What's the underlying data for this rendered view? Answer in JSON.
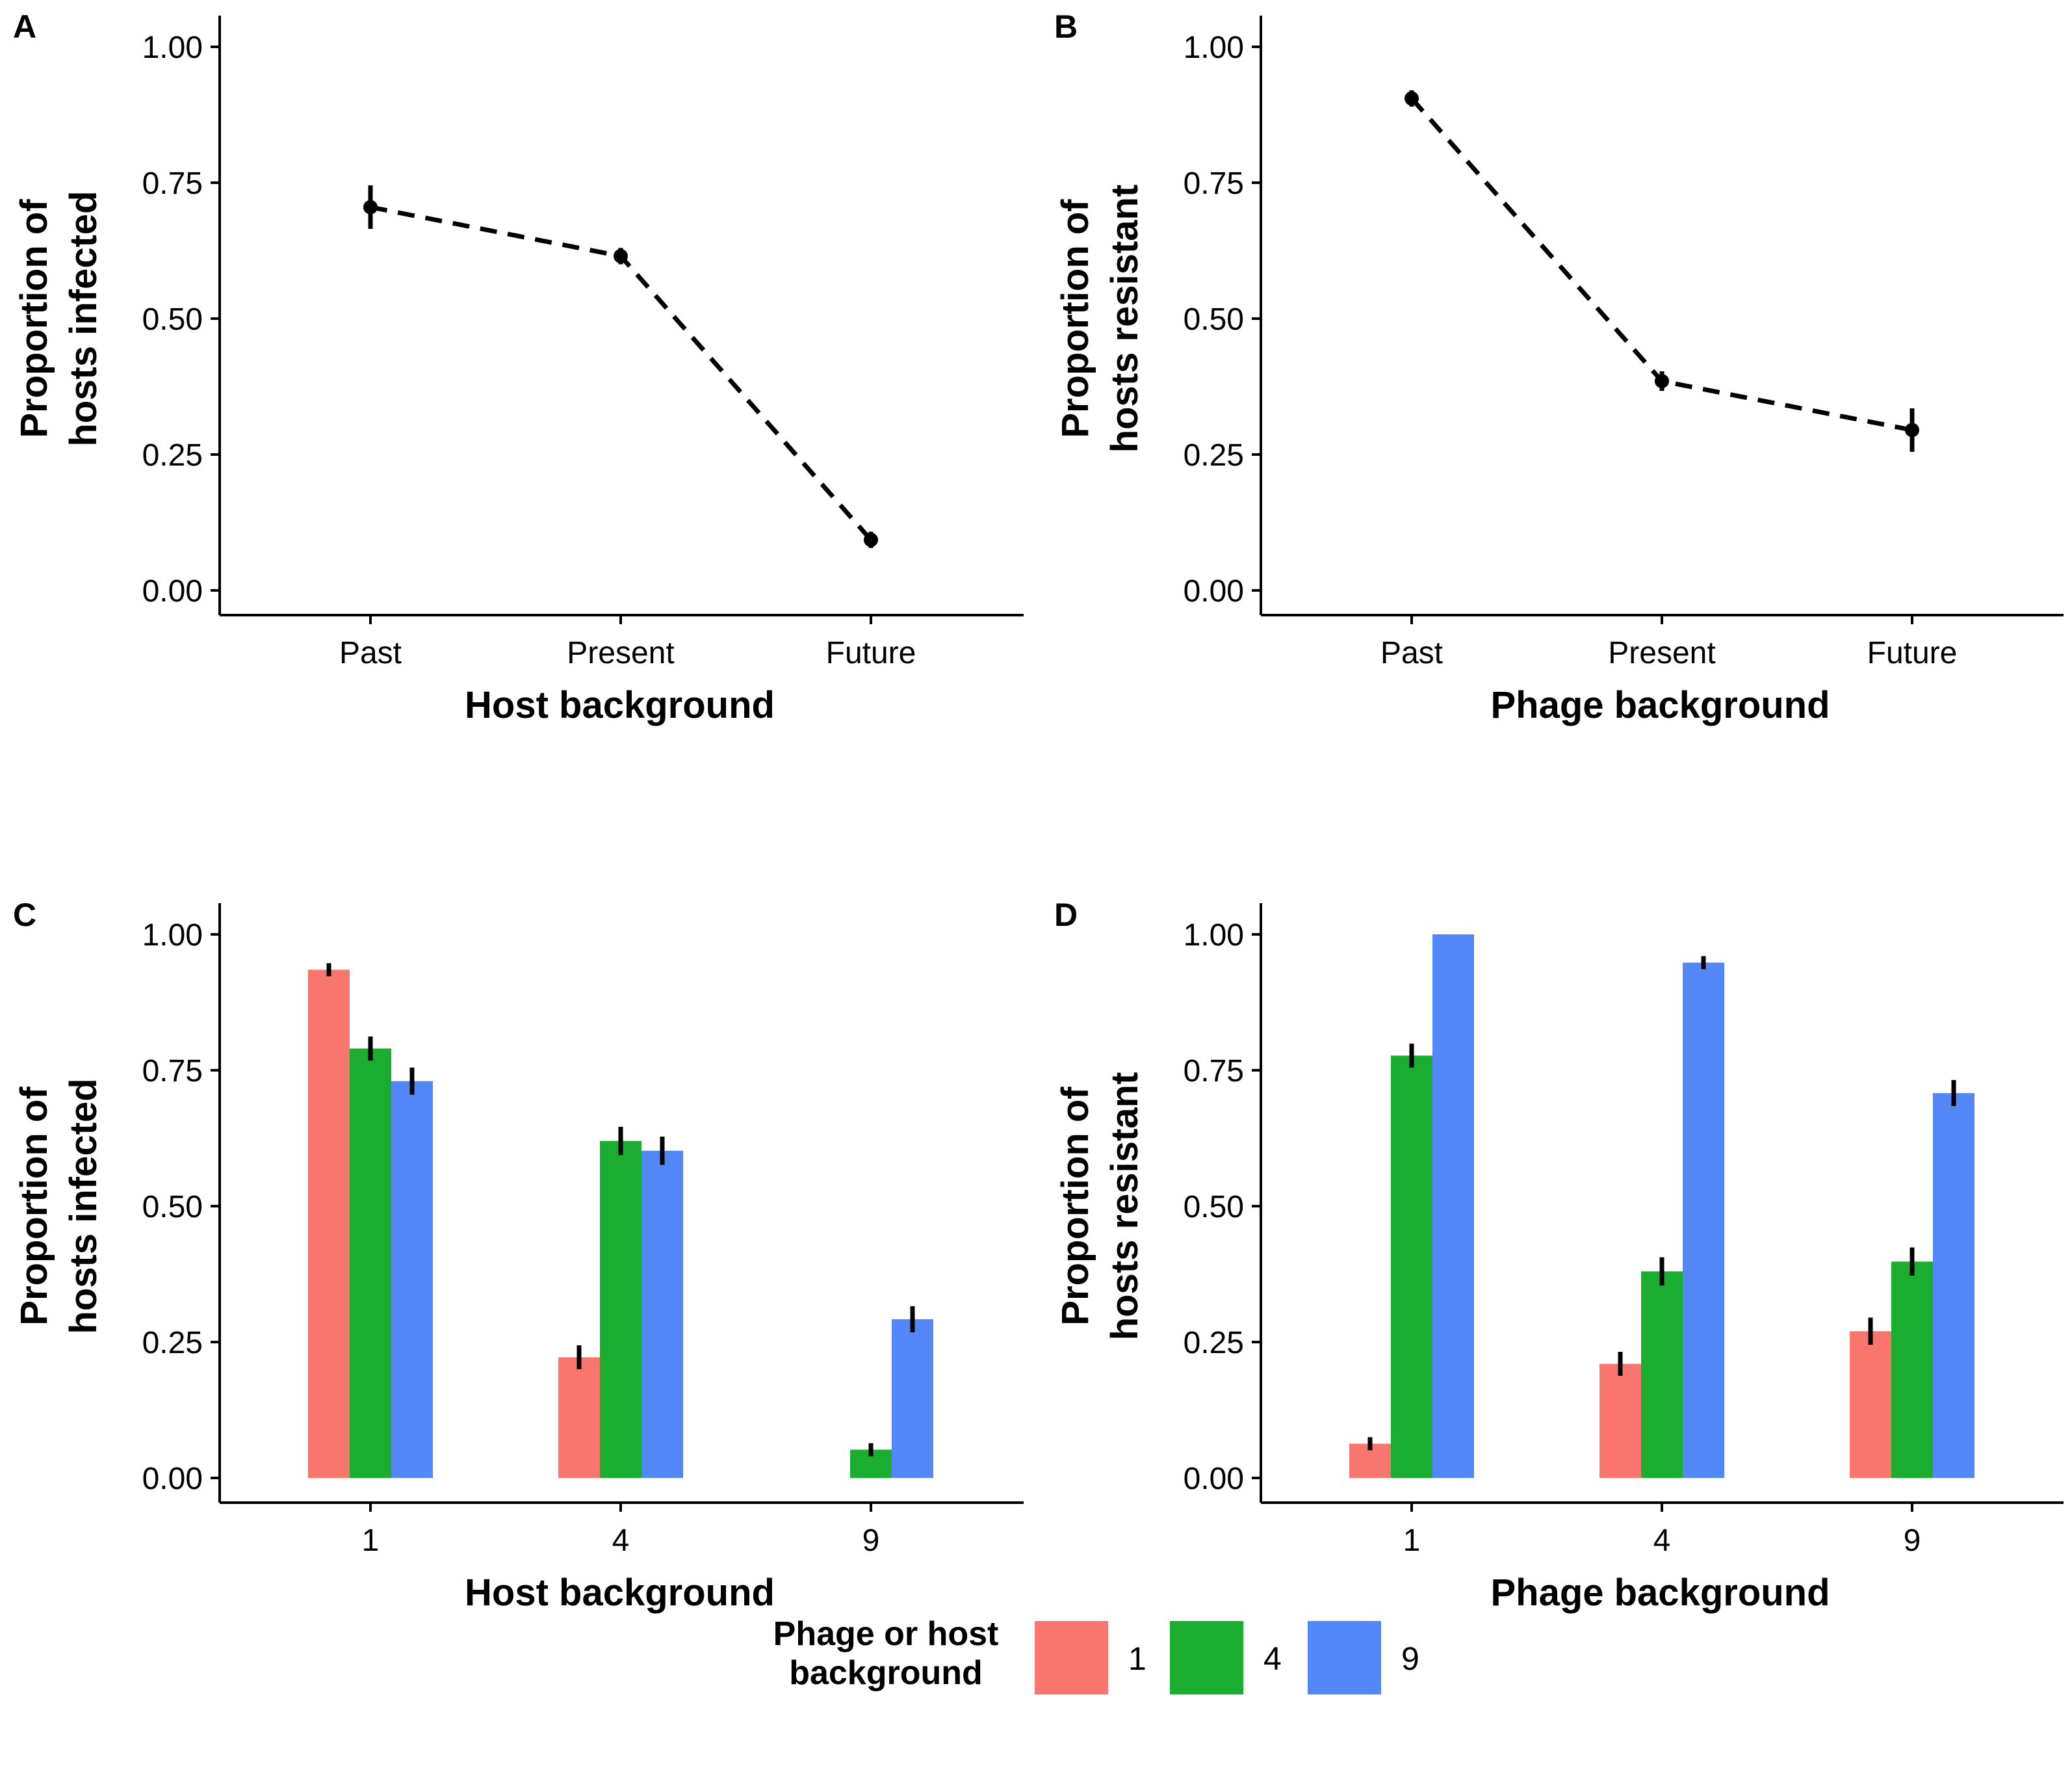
{
  "legend": {
    "title_line1": "Phage or host",
    "title_line2": "background",
    "items": [
      {
        "label": "1",
        "color": "#F8766D"
      },
      {
        "label": "4",
        "color": "#1BAD2F"
      },
      {
        "label": "9",
        "color": "#5387F8"
      }
    ]
  },
  "chart_data": [
    {
      "panel": "A",
      "type": "line",
      "x_categories": [
        "Past",
        "Present",
        "Future"
      ],
      "series": [
        {
          "values": [
            0.705,
            0.615,
            0.093
          ],
          "errors": [
            0.04,
            0.015,
            0.015
          ]
        }
      ],
      "xlabel": "Host background",
      "ylabel_line1": "Proportion of",
      "ylabel_line2": "hosts infected",
      "ylim": [
        0,
        1
      ],
      "yticks": [
        "0.00",
        "0.25",
        "0.50",
        "0.75",
        "1.00"
      ],
      "line_style": "dashed",
      "grid": false
    },
    {
      "panel": "B",
      "type": "line",
      "x_categories": [
        "Past",
        "Present",
        "Future"
      ],
      "series": [
        {
          "values": [
            0.905,
            0.385,
            0.295
          ],
          "errors": [
            0.015,
            0.018,
            0.04
          ]
        }
      ],
      "xlabel": "Phage background",
      "ylabel_line1": "Proportion of",
      "ylabel_line2": "hosts resistant",
      "ylim": [
        0,
        1
      ],
      "yticks": [
        "0.00",
        "0.25",
        "0.50",
        "0.75",
        "1.00"
      ],
      "line_style": "dashed",
      "grid": false
    },
    {
      "panel": "C",
      "type": "bar",
      "categories": [
        "1",
        "4",
        "9"
      ],
      "series": [
        {
          "name": "1",
          "values": [
            0.935,
            0.222,
            0.0
          ],
          "errors": [
            0.012,
            0.022,
            0.0
          ]
        },
        {
          "name": "4",
          "values": [
            0.79,
            0.62,
            0.052
          ],
          "errors": [
            0.022,
            0.026,
            0.012
          ]
        },
        {
          "name": "9",
          "values": [
            0.73,
            0.602,
            0.292
          ],
          "errors": [
            0.025,
            0.026,
            0.024
          ]
        }
      ],
      "xlabel": "Host background",
      "ylabel_line1": "Proportion of",
      "ylabel_line2": "hosts infected",
      "ylim": [
        0,
        1
      ],
      "yticks": [
        "0.00",
        "0.25",
        "0.50",
        "0.75",
        "1.00"
      ],
      "grid": false
    },
    {
      "panel": "D",
      "type": "bar",
      "categories": [
        "1",
        "4",
        "9"
      ],
      "series": [
        {
          "name": "1",
          "values": [
            0.063,
            0.21,
            0.27
          ],
          "errors": [
            0.012,
            0.022,
            0.025
          ]
        },
        {
          "name": "4",
          "values": [
            0.777,
            0.38,
            0.398
          ],
          "errors": [
            0.022,
            0.026,
            0.026
          ]
        },
        {
          "name": "9",
          "values": [
            1.0,
            0.948,
            0.708
          ],
          "errors": [
            0.0,
            0.012,
            0.024
          ]
        }
      ],
      "xlabel": "Phage background",
      "ylabel_line1": "Proportion of",
      "ylabel_line2": "hosts resistant",
      "ylim": [
        0,
        1
      ],
      "yticks": [
        "0.00",
        "0.25",
        "0.50",
        "0.75",
        "1.00"
      ],
      "grid": false
    }
  ]
}
